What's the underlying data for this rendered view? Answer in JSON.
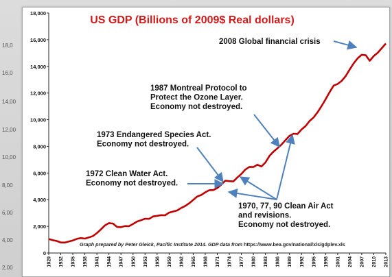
{
  "background_labels": [
    {
      "text": "18,0",
      "top": 62
    },
    {
      "text": "16,0",
      "top": 102
    },
    {
      "text": "14,00",
      "top": 144
    },
    {
      "text": "12,00",
      "top": 185
    },
    {
      "text": "10,00",
      "top": 225
    },
    {
      "text": "8,00",
      "top": 266
    },
    {
      "text": "6,00",
      "top": 306
    },
    {
      "text": "4,00",
      "top": 346
    },
    {
      "text": "2,00",
      "top": 386
    }
  ],
  "chart_data": {
    "type": "line",
    "title": "US GDP (Billions of 2009$  Real dollars)",
    "ylim": [
      0,
      18000
    ],
    "ytick_labels": [
      "0",
      "2,000",
      "4,000",
      "6,000",
      "8,000",
      "10,000",
      "12,000",
      "14,000",
      "16,000",
      "18,000"
    ],
    "xtick_labels": [
      "1929",
      "1932",
      "1935",
      "1938",
      "1941",
      "1944",
      "1947",
      "1950",
      "1953",
      "1956",
      "1959",
      "1962",
      "1965",
      "1968",
      "1971",
      "1974",
      "1977",
      "1980",
      "1983",
      "1986",
      "1989",
      "1992",
      "1995",
      "1998",
      "2001",
      "2004",
      "2007",
      "2010",
      "2013"
    ],
    "grid": false,
    "line_color": "#c00000",
    "arrow_color": "#4f81bd",
    "series": [
      {
        "x": [
          1929,
          1930,
          1931,
          1932,
          1933,
          1934,
          1935,
          1936,
          1937,
          1938,
          1939,
          1940,
          1941,
          1942,
          1943,
          1944,
          1945,
          1946,
          1947,
          1948,
          1949,
          1950,
          1951,
          1952,
          1953,
          1954,
          1955,
          1956,
          1957,
          1958,
          1959,
          1960,
          1961,
          1962,
          1963,
          1964,
          1965,
          1966,
          1967,
          1968,
          1969,
          1970,
          1971,
          1972,
          1973,
          1974,
          1975,
          1976,
          1977,
          1978,
          1979,
          1980,
          1981,
          1982,
          1983,
          1984,
          1985,
          1986,
          1987,
          1988,
          1989,
          1990,
          1991,
          1992,
          1993,
          1994,
          1995,
          1996,
          1997,
          1998,
          1999,
          2000,
          2001,
          2002,
          2003,
          2004,
          2005,
          2006,
          2007,
          2008,
          2009,
          2010,
          2011,
          2012,
          2013
        ],
        "values": [
          1050,
          960,
          900,
          790,
          780,
          860,
          940,
          1060,
          1120,
          1080,
          1170,
          1270,
          1490,
          1770,
          2070,
          2240,
          2210,
          1960,
          1940,
          2020,
          2010,
          2180,
          2360,
          2460,
          2570,
          2560,
          2740,
          2790,
          2840,
          2830,
          3030,
          3110,
          3190,
          3380,
          3530,
          3730,
          3980,
          4240,
          4350,
          4550,
          4710,
          4720,
          4870,
          5130,
          5420,
          5390,
          5370,
          5670,
          5930,
          6260,
          6460,
          6450,
          6620,
          6490,
          6790,
          7280,
          7600,
          7860,
          8130,
          8470,
          8790,
          8950,
          8930,
          9270,
          9520,
          9900,
          10170,
          10560,
          11030,
          11530,
          12070,
          12560,
          12680,
          12910,
          13270,
          13770,
          14230,
          14610,
          14870,
          14830,
          14420,
          14780,
          15020,
          15370,
          15710
        ]
      }
    ],
    "annotations": [
      {
        "lines": [
          "2008 Global financial crisis"
        ]
      },
      {
        "lines": [
          "1987 Montreal Protocol to",
          "Protect the Ozone Layer.",
          "Economy not destroyed."
        ]
      },
      {
        "lines": [
          "1973 Endangered Species Act.",
          "Economy not destroyed."
        ]
      },
      {
        "lines": [
          "1972 Clean Water Act.",
          "Economy not destroyed."
        ]
      },
      {
        "lines": [
          "1970, 77, 90 Clean Air Act",
          "and revisions.",
          "Economy not destroyed."
        ]
      }
    ],
    "credit": {
      "italic": "Graph prepared by Peter Gleick, Pacific Institute 2014.  GDP data from ",
      "url": "https://www.bea.gov/national/xls/gdplev.xls"
    }
  }
}
